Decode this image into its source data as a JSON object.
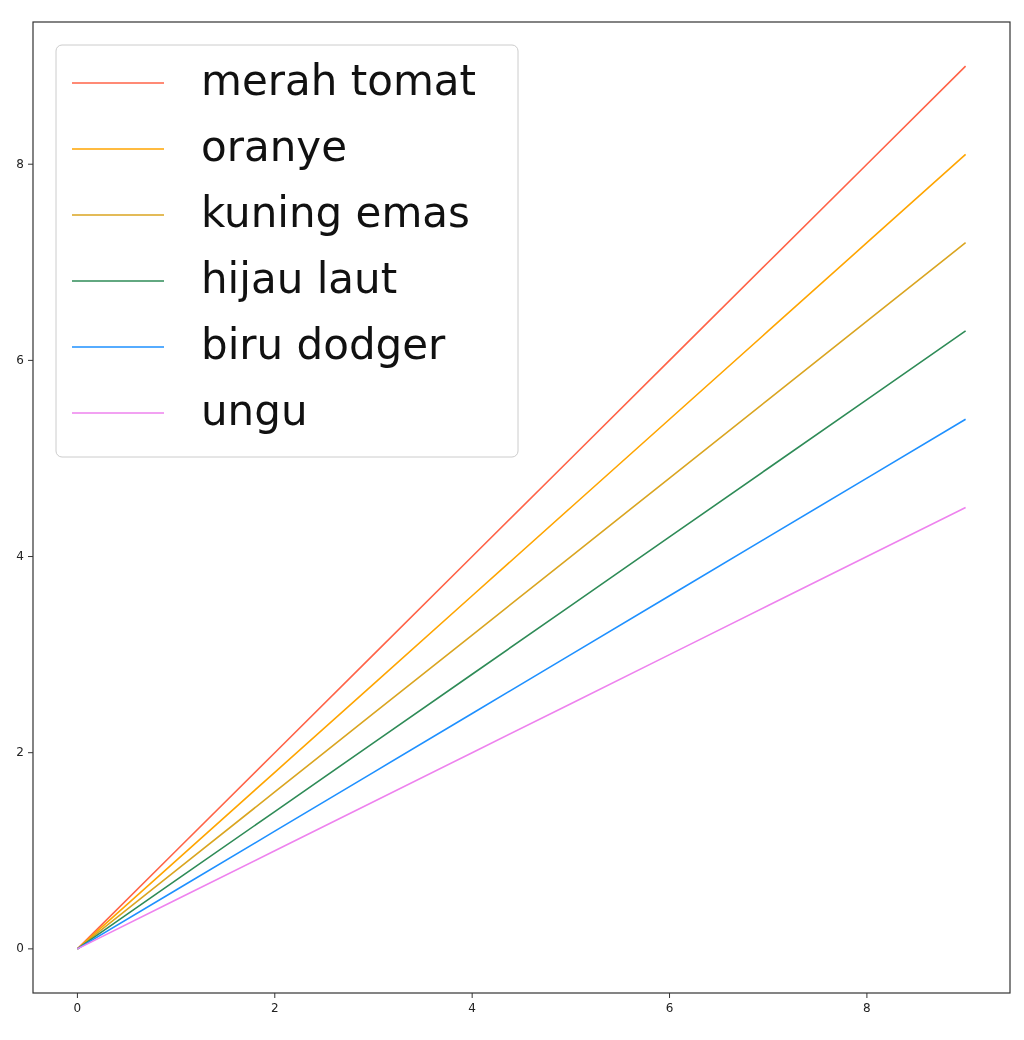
{
  "chart_data": {
    "type": "line",
    "x": [
      0,
      1,
      2,
      3,
      4,
      5,
      6,
      7,
      8,
      9
    ],
    "series": [
      {
        "name": "merah tomat",
        "color": "#ff6347",
        "values": [
          0,
          1,
          2,
          3,
          4,
          5,
          6,
          7,
          8,
          9
        ]
      },
      {
        "name": "oranye",
        "color": "#ffa500",
        "values": [
          0,
          0.9,
          1.8,
          2.7,
          3.6,
          4.5,
          5.4,
          6.3,
          7.2,
          8.1
        ]
      },
      {
        "name": "kuning emas",
        "color": "#daa520",
        "values": [
          0,
          0.8,
          1.6,
          2.4,
          3.2,
          4,
          4.8,
          5.6,
          6.4,
          7.2
        ]
      },
      {
        "name": "hijau laut",
        "color": "#2e8b57",
        "values": [
          0,
          0.7,
          1.4,
          2.1,
          2.8,
          3.5,
          4.2,
          4.9,
          5.6,
          6.3
        ]
      },
      {
        "name": "biru dodger",
        "color": "#1e90ff",
        "values": [
          0,
          0.6,
          1.2,
          1.8,
          2.4,
          3,
          3.6,
          4.2,
          4.8,
          5.4
        ]
      },
      {
        "name": "ungu",
        "color": "#ee82ee",
        "values": [
          0,
          0.5,
          1,
          1.5,
          2,
          2.5,
          3,
          3.5,
          4,
          4.5
        ]
      }
    ],
    "xlim": [
      -0.45,
      9.45
    ],
    "ylim": [
      -0.45,
      9.45
    ],
    "xticks": [
      0,
      2,
      4,
      6,
      8
    ],
    "yticks": [
      0,
      2,
      4,
      6,
      8
    ],
    "grid": false,
    "legend": "top left",
    "marker": "none",
    "line_style": "solid"
  }
}
